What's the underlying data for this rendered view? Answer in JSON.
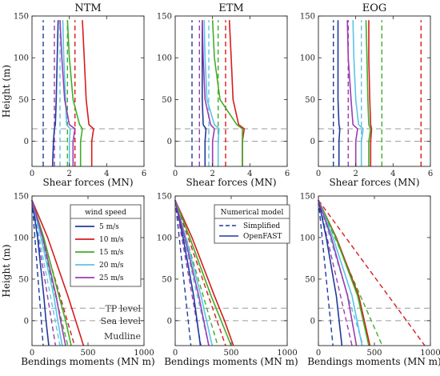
{
  "colors": {
    "5 m/s": "#1f3a9e",
    "10 m/s": "#d81c1c",
    "15 m/s": "#3fae2a",
    "20 m/s": "#5bc3e6",
    "25 m/s": "#9b3bb0",
    "reference_line": "#9a9a9a"
  },
  "shared": {
    "shear_xlabel": "Shear forces (MN)",
    "moment_xlabel": "Bendings moments (MN m)",
    "ylabel": "Height (m)",
    "tp_level": 15,
    "sea_level": 0,
    "mudline": -30
  },
  "annotations": {
    "tp": "TP level",
    "sea": "Sea level",
    "mud": "Mudline"
  },
  "legends": {
    "wind": {
      "title": "wind speed",
      "entries": [
        "5 m/s",
        "10 m/s",
        "15 m/s",
        "20 m/s",
        "25 m/s"
      ]
    },
    "model": {
      "title": "Numerical model",
      "entries": [
        {
          "label": "Simplified",
          "style": "dashed"
        },
        {
          "label": "OpenFAST",
          "style": "solid"
        }
      ]
    }
  },
  "chart_data": [
    {
      "type": "line",
      "panel": "shear-ntm",
      "title": "NTM",
      "xlabel": "Shear forces (MN)",
      "ylabel": "Height (m)",
      "xlim": [
        0,
        6
      ],
      "ylim": [
        -30,
        150
      ],
      "xticks": [
        0,
        2,
        4,
        6
      ],
      "yticks": [
        0,
        50,
        100,
        150
      ],
      "grid": false,
      "series": [
        {
          "name": "5 m/s",
          "model": "Simplified",
          "x": [
            0.6,
            0.6
          ],
          "y": [
            -30,
            145
          ]
        },
        {
          "name": "10 m/s",
          "model": "Simplified",
          "x": [
            2.3,
            2.3
          ],
          "y": [
            -30,
            145
          ]
        },
        {
          "name": "15 m/s",
          "model": "Simplified",
          "x": [
            1.9,
            1.9
          ],
          "y": [
            -30,
            145
          ]
        },
        {
          "name": "20 m/s",
          "model": "Simplified",
          "x": [
            1.5,
            1.5
          ],
          "y": [
            -30,
            145
          ]
        },
        {
          "name": "25 m/s",
          "model": "Simplified",
          "x": [
            1.2,
            1.2
          ],
          "y": [
            -30,
            145
          ]
        },
        {
          "name": "5 m/s",
          "model": "OpenFAST",
          "x": [
            1.1,
            1.15,
            1.2,
            1.25,
            1.3,
            1.35,
            1.4
          ],
          "y": [
            -30,
            0,
            15,
            20,
            50,
            100,
            145
          ]
        },
        {
          "name": "10 m/s",
          "model": "OpenFAST",
          "x": [
            3.2,
            3.2,
            3.3,
            3.05,
            2.9,
            2.8,
            2.7
          ],
          "y": [
            -30,
            0,
            15,
            20,
            50,
            100,
            145
          ]
        },
        {
          "name": "15 m/s",
          "model": "OpenFAST",
          "x": [
            2.6,
            2.6,
            2.7,
            2.55,
            2.2,
            2.0,
            1.9
          ],
          "y": [
            -30,
            0,
            15,
            20,
            50,
            100,
            145
          ]
        },
        {
          "name": "20 m/s",
          "model": "OpenFAST",
          "x": [
            2.0,
            2.0,
            2.05,
            1.85,
            1.8,
            1.7,
            1.65
          ],
          "y": [
            -30,
            0,
            15,
            20,
            50,
            100,
            145
          ]
        },
        {
          "name": "25 m/s",
          "model": "OpenFAST",
          "x": [
            2.2,
            2.2,
            2.3,
            2.0,
            1.75,
            1.6,
            1.5
          ],
          "y": [
            -30,
            0,
            15,
            20,
            50,
            100,
            145
          ]
        }
      ]
    },
    {
      "type": "line",
      "panel": "shear-etm",
      "title": "ETM",
      "xlabel": "Shear forces (MN)",
      "ylabel": "",
      "xlim": [
        0,
        6
      ],
      "ylim": [
        -30,
        150
      ],
      "xticks": [
        0,
        2,
        4,
        6
      ],
      "yticks": [
        0,
        50,
        100,
        150
      ],
      "grid": false,
      "series": [
        {
          "name": "5 m/s",
          "model": "Simplified",
          "x": [
            0.9,
            0.9
          ],
          "y": [
            -30,
            145
          ]
        },
        {
          "name": "10 m/s",
          "model": "Simplified",
          "x": [
            2.7,
            2.7
          ],
          "y": [
            -30,
            145
          ]
        },
        {
          "name": "15 m/s",
          "model": "Simplified",
          "x": [
            2.3,
            2.3
          ],
          "y": [
            -30,
            145
          ]
        },
        {
          "name": "20 m/s",
          "model": "Simplified",
          "x": [
            1.8,
            1.8
          ],
          "y": [
            -30,
            145
          ]
        },
        {
          "name": "25 m/s",
          "model": "Simplified",
          "x": [
            1.3,
            1.3
          ],
          "y": [
            -30,
            145
          ]
        },
        {
          "name": "5 m/s",
          "model": "OpenFAST",
          "x": [
            1.6,
            1.6,
            1.65,
            1.5,
            1.45,
            1.45,
            1.45
          ],
          "y": [
            -30,
            0,
            15,
            20,
            50,
            100,
            145
          ]
        },
        {
          "name": "10 m/s",
          "model": "OpenFAST",
          "x": [
            3.6,
            3.6,
            3.7,
            3.4,
            3.1,
            3.0,
            2.9
          ],
          "y": [
            -30,
            0,
            15,
            20,
            50,
            100,
            145
          ]
        },
        {
          "name": "15 m/s",
          "model": "OpenFAST",
          "x": [
            3.6,
            3.6,
            3.6,
            3.3,
            2.4,
            2.1,
            2.0
          ],
          "y": [
            -30,
            0,
            15,
            20,
            50,
            100,
            145
          ]
        },
        {
          "name": "20 m/s",
          "model": "OpenFAST",
          "x": [
            2.3,
            2.3,
            2.35,
            2.1,
            1.7,
            1.6,
            1.55
          ],
          "y": [
            -30,
            0,
            15,
            20,
            50,
            100,
            145
          ]
        },
        {
          "name": "25 m/s",
          "model": "OpenFAST",
          "x": [
            2.0,
            2.0,
            2.1,
            1.9,
            1.6,
            1.5,
            1.45
          ],
          "y": [
            -30,
            0,
            15,
            20,
            50,
            100,
            145
          ]
        }
      ]
    },
    {
      "type": "line",
      "panel": "shear-eog",
      "title": "EOG",
      "xlabel": "Shear forces (MN)",
      "ylabel": "",
      "xlim": [
        0,
        6
      ],
      "ylim": [
        -30,
        150
      ],
      "xticks": [
        0,
        2,
        4,
        6
      ],
      "yticks": [
        0,
        50,
        100,
        150
      ],
      "grid": false,
      "series": [
        {
          "name": "5 m/s",
          "model": "Simplified",
          "x": [
            0.8,
            0.8
          ],
          "y": [
            -30,
            145
          ]
        },
        {
          "name": "10 m/s",
          "model": "Simplified",
          "x": [
            5.5,
            5.5
          ],
          "y": [
            -30,
            145
          ]
        },
        {
          "name": "15 m/s",
          "model": "Simplified",
          "x": [
            3.4,
            3.4
          ],
          "y": [
            -30,
            145
          ]
        },
        {
          "name": "20 m/s",
          "model": "Simplified",
          "x": [
            2.3,
            2.3
          ],
          "y": [
            -30,
            145
          ]
        },
        {
          "name": "25 m/s",
          "model": "Simplified",
          "x": [
            1.6,
            1.6
          ],
          "y": [
            -30,
            145
          ]
        },
        {
          "name": "5 m/s",
          "model": "OpenFAST",
          "x": [
            1.1,
            1.1,
            1.15,
            1.1,
            1.05,
            1.05,
            1.05
          ],
          "y": [
            -30,
            0,
            15,
            20,
            50,
            100,
            145
          ]
        },
        {
          "name": "10 m/s",
          "model": "OpenFAST",
          "x": [
            2.8,
            2.8,
            2.85,
            2.8,
            2.75,
            2.7,
            2.7
          ],
          "y": [
            -30,
            0,
            15,
            20,
            50,
            100,
            145
          ]
        },
        {
          "name": "15 m/s",
          "model": "OpenFAST",
          "x": [
            2.7,
            2.7,
            2.8,
            2.7,
            2.65,
            2.6,
            2.55
          ],
          "y": [
            -30,
            0,
            15,
            20,
            50,
            100,
            145
          ]
        },
        {
          "name": "20 m/s",
          "model": "OpenFAST",
          "x": [
            2.3,
            2.3,
            2.4,
            2.15,
            2.0,
            1.9,
            1.85
          ],
          "y": [
            -30,
            0,
            15,
            20,
            50,
            100,
            145
          ]
        },
        {
          "name": "25 m/s",
          "model": "OpenFAST",
          "x": [
            2.0,
            2.0,
            2.1,
            1.85,
            1.75,
            1.6,
            1.55
          ],
          "y": [
            -30,
            0,
            15,
            20,
            50,
            100,
            145
          ]
        }
      ]
    },
    {
      "type": "line",
      "panel": "moment-ntm",
      "title": "",
      "xlabel": "Bendings moments (MN m)",
      "ylabel": "Height (m)",
      "xlim": [
        0,
        1000
      ],
      "ylim": [
        -30,
        150
      ],
      "xticks": [
        0,
        500,
        1000
      ],
      "yticks": [
        0,
        50,
        100,
        150
      ],
      "grid": false,
      "series": [
        {
          "name": "5 m/s",
          "model": "Simplified",
          "x": [
            0,
            100
          ],
          "y": [
            145,
            -30
          ]
        },
        {
          "name": "10 m/s",
          "model": "Simplified",
          "x": [
            0,
            380
          ],
          "y": [
            145,
            -30
          ]
        },
        {
          "name": "15 m/s",
          "model": "Simplified",
          "x": [
            0,
            320
          ],
          "y": [
            145,
            -30
          ]
        },
        {
          "name": "20 m/s",
          "model": "Simplified",
          "x": [
            0,
            250
          ],
          "y": [
            145,
            -30
          ]
        },
        {
          "name": "25 m/s",
          "model": "Simplified",
          "x": [
            0,
            210
          ],
          "y": [
            145,
            -30
          ]
        },
        {
          "name": "5 m/s",
          "model": "OpenFAST",
          "x": [
            0,
            50,
            105,
            125,
            150
          ],
          "y": [
            145,
            100,
            30,
            0,
            -30
          ]
        },
        {
          "name": "10 m/s",
          "model": "OpenFAST",
          "x": [
            0,
            140,
            320,
            390,
            460
          ],
          "y": [
            145,
            100,
            30,
            0,
            -30
          ]
        },
        {
          "name": "15 m/s",
          "model": "OpenFAST",
          "x": [
            0,
            105,
            240,
            300,
            350
          ],
          "y": [
            145,
            100,
            30,
            0,
            -30
          ]
        },
        {
          "name": "20 m/s",
          "model": "OpenFAST",
          "x": [
            0,
            80,
            195,
            230,
            270
          ],
          "y": [
            145,
            100,
            30,
            0,
            -30
          ]
        },
        {
          "name": "25 m/s",
          "model": "OpenFAST",
          "x": [
            0,
            95,
            215,
            255,
            300
          ],
          "y": [
            145,
            100,
            30,
            0,
            -30
          ]
        }
      ]
    },
    {
      "type": "line",
      "panel": "moment-etm",
      "title": "",
      "xlabel": "Bendings moments (MN m)",
      "ylabel": "",
      "xlim": [
        0,
        1000
      ],
      "ylim": [
        -30,
        150
      ],
      "xticks": [
        0,
        500,
        1000
      ],
      "yticks": [
        0,
        50,
        100,
        150
      ],
      "grid": false,
      "series": [
        {
          "name": "5 m/s",
          "model": "Simplified",
          "x": [
            0,
            140
          ],
          "y": [
            145,
            -30
          ]
        },
        {
          "name": "10 m/s",
          "model": "Simplified",
          "x": [
            0,
            450
          ],
          "y": [
            145,
            -30
          ]
        },
        {
          "name": "15 m/s",
          "model": "Simplified",
          "x": [
            0,
            380
          ],
          "y": [
            145,
            -30
          ]
        },
        {
          "name": "20 m/s",
          "model": "Simplified",
          "x": [
            0,
            300
          ],
          "y": [
            145,
            -30
          ]
        },
        {
          "name": "25 m/s",
          "model": "Simplified",
          "x": [
            0,
            230
          ],
          "y": [
            145,
            -30
          ]
        },
        {
          "name": "5 m/s",
          "model": "OpenFAST",
          "x": [
            0,
            70,
            165,
            195,
            225
          ],
          "y": [
            145,
            100,
            30,
            0,
            -30
          ]
        },
        {
          "name": "10 m/s",
          "model": "OpenFAST",
          "x": [
            0,
            150,
            350,
            440,
            520
          ],
          "y": [
            145,
            100,
            30,
            0,
            -30
          ]
        },
        {
          "name": "15 m/s",
          "model": "OpenFAST",
          "x": [
            0,
            130,
            320,
            410,
            500
          ],
          "y": [
            145,
            100,
            30,
            0,
            -30
          ]
        },
        {
          "name": "20 m/s",
          "model": "OpenFAST",
          "x": [
            0,
            95,
            230,
            280,
            330
          ],
          "y": [
            145,
            100,
            30,
            0,
            -30
          ]
        },
        {
          "name": "25 m/s",
          "model": "OpenFAST",
          "x": [
            0,
            85,
            210,
            255,
            300
          ],
          "y": [
            145,
            100,
            30,
            0,
            -30
          ]
        }
      ]
    },
    {
      "type": "line",
      "panel": "moment-eog",
      "title": "",
      "xlabel": "Bendings moments (MN m)",
      "ylabel": "",
      "xlim": [
        0,
        1000
      ],
      "ylim": [
        -30,
        150
      ],
      "xticks": [
        0,
        500,
        1000
      ],
      "yticks": [
        0,
        50,
        100,
        150
      ],
      "grid": false,
      "series": [
        {
          "name": "5 m/s",
          "model": "Simplified",
          "x": [
            0,
            130
          ],
          "y": [
            145,
            -30
          ]
        },
        {
          "name": "10 m/s",
          "model": "Simplified",
          "x": [
            0,
            950
          ],
          "y": [
            145,
            -30
          ]
        },
        {
          "name": "15 m/s",
          "model": "Simplified",
          "x": [
            0,
            570
          ],
          "y": [
            145,
            -30
          ]
        },
        {
          "name": "20 m/s",
          "model": "Simplified",
          "x": [
            0,
            400
          ],
          "y": [
            145,
            -30
          ]
        },
        {
          "name": "25 m/s",
          "model": "Simplified",
          "x": [
            0,
            300
          ],
          "y": [
            145,
            -30
          ]
        },
        {
          "name": "5 m/s",
          "model": "OpenFAST",
          "x": [
            0,
            70,
            160,
            185,
            210
          ],
          "y": [
            145,
            100,
            30,
            0,
            -30
          ]
        },
        {
          "name": "10 m/s",
          "model": "OpenFAST",
          "x": [
            0,
            160,
            360,
            410,
            460
          ],
          "y": [
            145,
            100,
            30,
            0,
            -30
          ]
        },
        {
          "name": "15 m/s",
          "model": "OpenFAST",
          "x": [
            0,
            155,
            350,
            400,
            450
          ],
          "y": [
            145,
            100,
            30,
            0,
            -30
          ]
        },
        {
          "name": "20 m/s",
          "model": "OpenFAST",
          "x": [
            0,
            130,
            300,
            345,
            390
          ],
          "y": [
            145,
            100,
            30,
            0,
            -30
          ]
        },
        {
          "name": "25 m/s",
          "model": "OpenFAST",
          "x": [
            0,
            115,
            260,
            300,
            340
          ],
          "y": [
            145,
            100,
            30,
            0,
            -30
          ]
        }
      ]
    }
  ]
}
